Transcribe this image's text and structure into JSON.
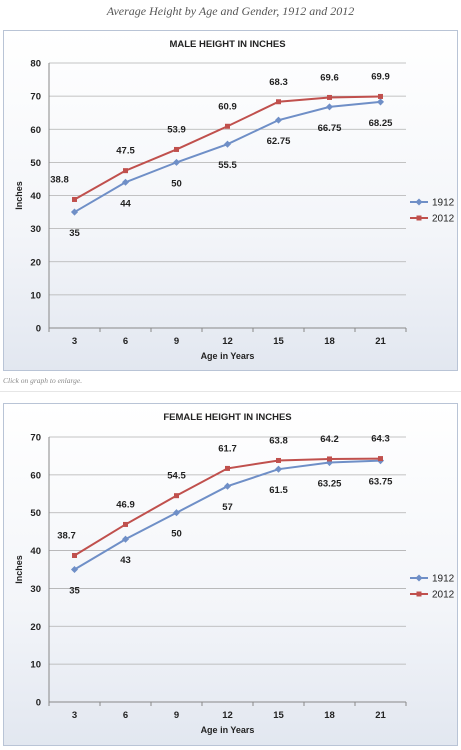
{
  "page_title": "Average Height by Age and Gender, 1912 and 2012",
  "caption": "Click on graph to enlarge.",
  "colors": {
    "series_1912": "#6f8fc7",
    "series_2012": "#c0504d",
    "gridline": "#b0b0b0",
    "axis": "#888888"
  },
  "chart_data": [
    {
      "type": "line",
      "title": "MALE HEIGHT IN INCHES",
      "xlabel": "Age in Years",
      "ylabel": "Inches",
      "categories": [
        "3",
        "6",
        "9",
        "12",
        "15",
        "18",
        "21"
      ],
      "ylim": [
        0,
        80
      ],
      "yticks": [
        "0",
        "10",
        "20",
        "30",
        "40",
        "50",
        "60",
        "70",
        "80"
      ],
      "grid": true,
      "legend": "right",
      "series": [
        {
          "name": "1912",
          "values": [
            35,
            44,
            50,
            55.5,
            62.75,
            66.75,
            68.25
          ],
          "labels": [
            "35",
            "44",
            "50",
            "55.5",
            "62.75",
            "66.75",
            "68.25"
          ],
          "label_position": "below"
        },
        {
          "name": "2012",
          "values": [
            38.8,
            47.5,
            53.9,
            60.9,
            68.3,
            69.6,
            69.9
          ],
          "labels": [
            "38.8",
            "47.5",
            "53.9",
            "60.9",
            "68.3",
            "69.6",
            "69.9"
          ],
          "label_position": "above"
        }
      ]
    },
    {
      "type": "line",
      "title": "FEMALE HEIGHT IN INCHES",
      "xlabel": "Age in Years",
      "ylabel": "Inches",
      "categories": [
        "3",
        "6",
        "9",
        "12",
        "15",
        "18",
        "21"
      ],
      "ylim": [
        0,
        70
      ],
      "yticks": [
        "0",
        "10",
        "20",
        "30",
        "40",
        "50",
        "60",
        "70"
      ],
      "grid": true,
      "legend": "right",
      "series": [
        {
          "name": "1912",
          "values": [
            35,
            43,
            50,
            57,
            61.5,
            63.25,
            63.75
          ],
          "labels": [
            "35",
            "43",
            "50",
            "57",
            "61.5",
            "63.25",
            "63.75"
          ],
          "label_position": "below"
        },
        {
          "name": "2012",
          "values": [
            38.7,
            46.9,
            54.5,
            61.7,
            63.8,
            64.2,
            64.3
          ],
          "labels": [
            "38.7",
            "46.9",
            "54.5",
            "61.7",
            "63.8",
            "64.2",
            "64.3"
          ],
          "label_position": "above"
        }
      ]
    }
  ]
}
